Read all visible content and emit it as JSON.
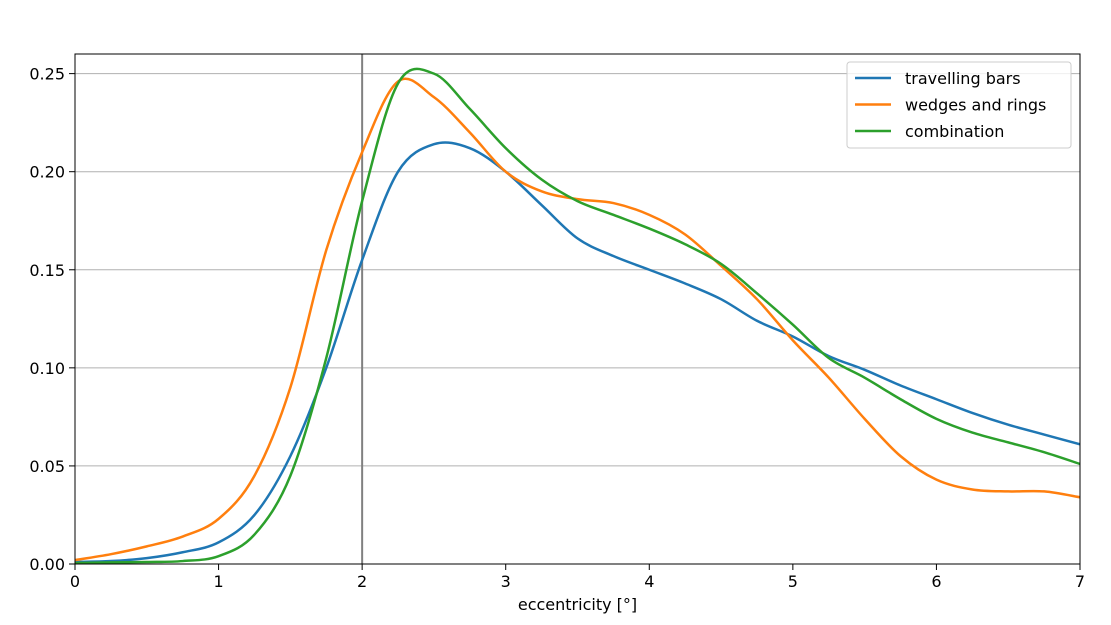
{
  "chart_data": {
    "type": "line",
    "title": "",
    "xlabel": "eccentricity [°]",
    "ylabel": "",
    "xlim": [
      0,
      7
    ],
    "ylim": [
      0,
      0.26
    ],
    "x_ticks": [
      0,
      1,
      2,
      3,
      4,
      5,
      6,
      7
    ],
    "x_tick_labels": [
      "0",
      "1",
      "2",
      "3",
      "4",
      "5",
      "6",
      "7"
    ],
    "y_ticks": [
      0,
      0.05,
      0.1,
      0.15,
      0.2,
      0.25
    ],
    "y_tick_labels": [
      "0.00",
      "0.05",
      "0.10",
      "0.15",
      "0.20",
      "0.25"
    ],
    "grid": "horizontal",
    "legend_position": "top-right",
    "reference_line": {
      "x": 2,
      "color": "#808080"
    },
    "x": [
      0,
      0.25,
      0.5,
      0.75,
      1.0,
      1.25,
      1.5,
      1.75,
      2.0,
      2.25,
      2.5,
      2.75,
      3.0,
      3.25,
      3.5,
      3.75,
      4.0,
      4.25,
      4.5,
      4.75,
      5.0,
      5.25,
      5.5,
      5.75,
      6.0,
      6.25,
      6.5,
      6.75,
      7.0
    ],
    "series": [
      {
        "name": "travelling bars",
        "color": "#1f77b4",
        "values": [
          0.001,
          0.0015,
          0.003,
          0.006,
          0.011,
          0.025,
          0.055,
          0.1,
          0.155,
          0.2,
          0.214,
          0.212,
          0.2,
          0.183,
          0.166,
          0.157,
          0.15,
          0.143,
          0.135,
          0.124,
          0.116,
          0.106,
          0.099,
          0.091,
          0.084,
          0.077,
          0.071,
          0.066,
          0.061
        ]
      },
      {
        "name": "wedges and rings",
        "color": "#ff7f0e",
        "values": [
          0.002,
          0.005,
          0.009,
          0.014,
          0.023,
          0.045,
          0.09,
          0.16,
          0.21,
          0.246,
          0.238,
          0.22,
          0.2,
          0.19,
          0.186,
          0.184,
          0.178,
          0.168,
          0.152,
          0.135,
          0.114,
          0.095,
          0.074,
          0.055,
          0.043,
          0.038,
          0.037,
          0.037,
          0.034
        ]
      },
      {
        "name": "combination",
        "color": "#2ca02c",
        "values": [
          0.0005,
          0.0008,
          0.001,
          0.0015,
          0.004,
          0.015,
          0.045,
          0.105,
          0.185,
          0.245,
          0.25,
          0.232,
          0.212,
          0.196,
          0.185,
          0.178,
          0.171,
          0.163,
          0.153,
          0.138,
          0.122,
          0.105,
          0.095,
          0.084,
          0.074,
          0.067,
          0.062,
          0.057,
          0.051
        ]
      }
    ]
  }
}
